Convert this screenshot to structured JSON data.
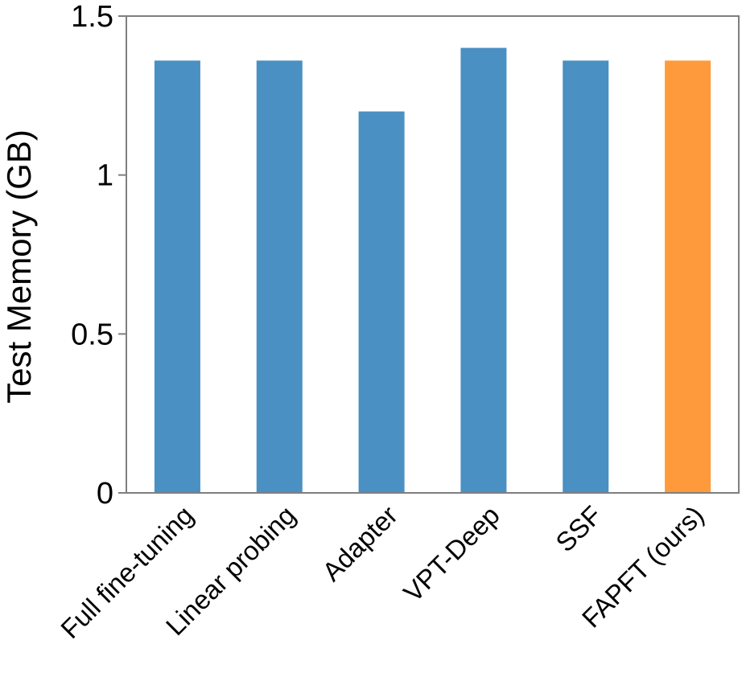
{
  "chart_data": {
    "type": "bar",
    "title": "",
    "xlabel": "",
    "ylabel": "Test Memory (GB)",
    "ylim": [
      0,
      1.5
    ],
    "yticks": [
      0,
      0.5,
      1,
      1.5
    ],
    "ytick_labels": [
      "0",
      "0.5",
      "1",
      "1.5"
    ],
    "grid": false,
    "categories": [
      "Full fine-tuning",
      "Linear probing",
      "Adapter",
      "VPT-Deep",
      "SSF",
      "FAPFT (ours)"
    ],
    "values": [
      1.36,
      1.36,
      1.2,
      1.4,
      1.36,
      1.36
    ],
    "colors": [
      "#4a90c2",
      "#4a90c2",
      "#4a90c2",
      "#4a90c2",
      "#4a90c2",
      "#ff9a3c"
    ]
  }
}
